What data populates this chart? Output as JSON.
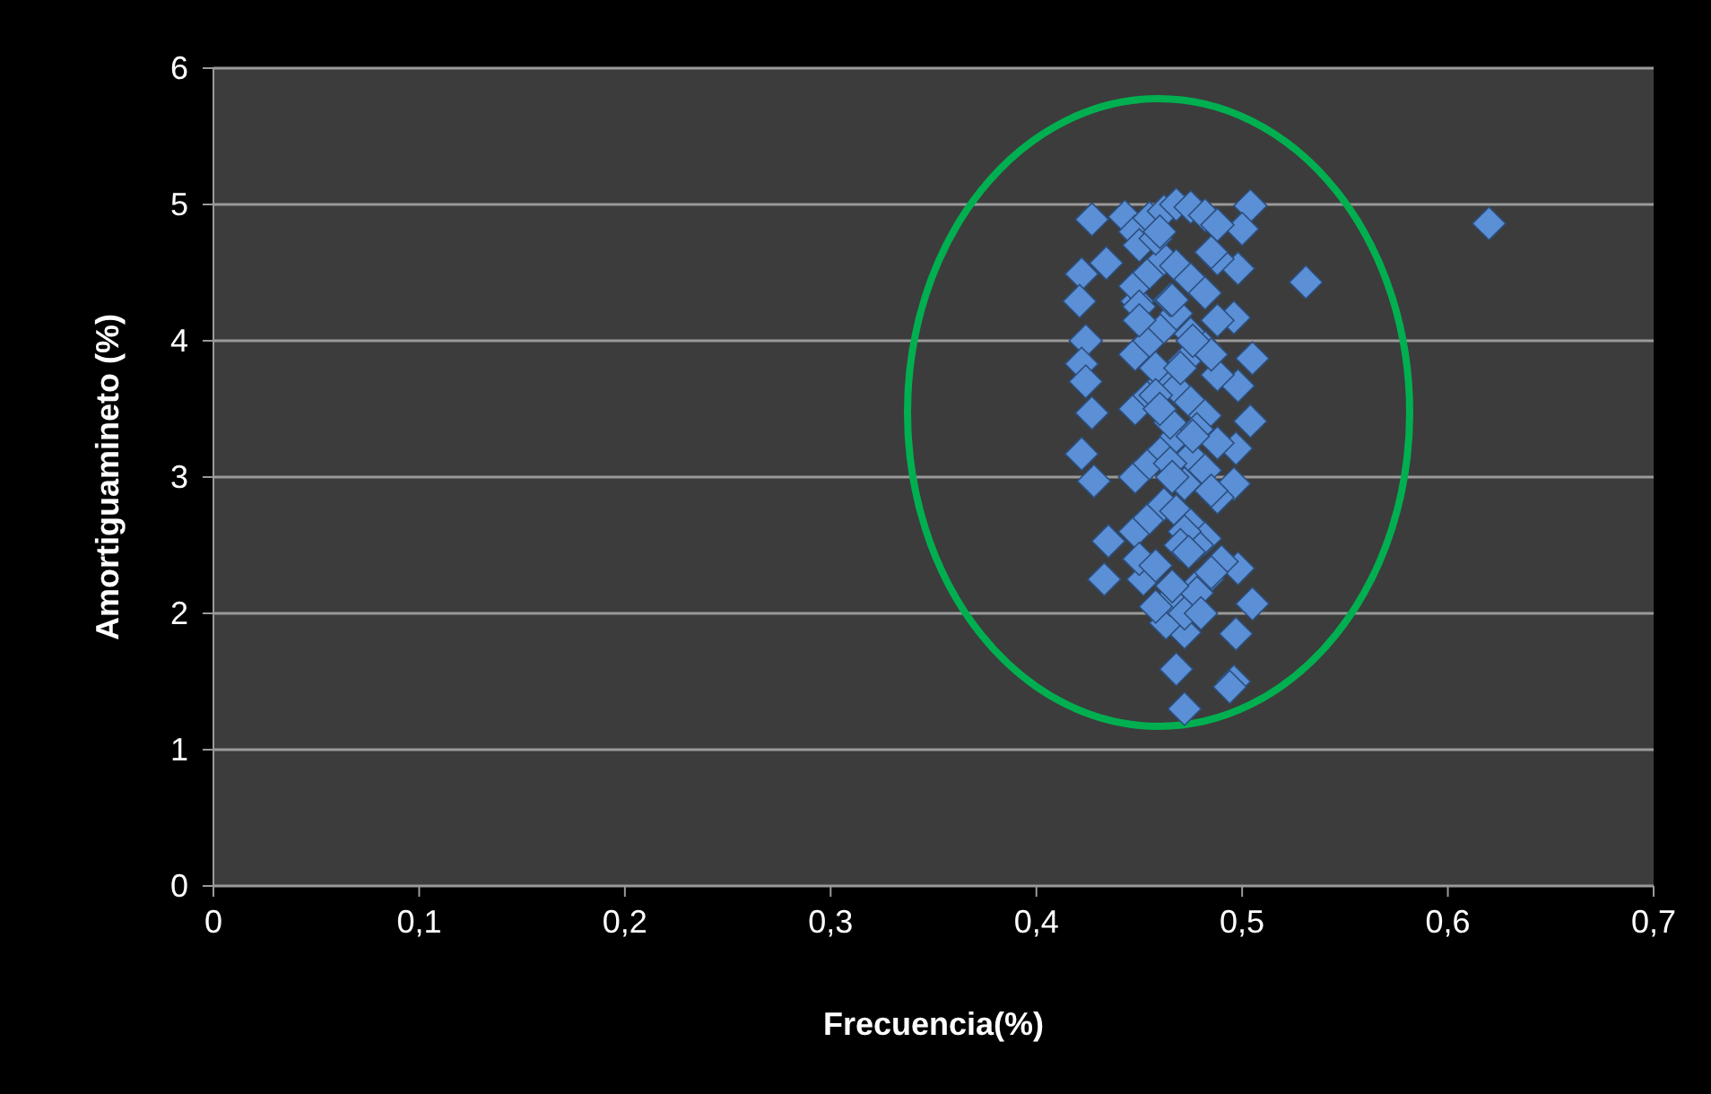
{
  "chart_data": {
    "type": "scatter",
    "xlabel": "Frecuencia(%)",
    "ylabel": "Amortiguamineto (%)",
    "marker": "diamond",
    "grid": "y",
    "xlim": [
      0,
      0.7
    ],
    "ylim": [
      0,
      6
    ],
    "xticks": [
      0,
      {
        "value": 0.1,
        "label": "0,1"
      },
      {
        "value": 0.2,
        "label": "0,2"
      },
      {
        "value": 0.3,
        "label": "0,3"
      },
      {
        "value": 0.4,
        "label": "0,4"
      },
      {
        "value": 0.5,
        "label": "0,5"
      },
      {
        "value": 0.6,
        "label": "0,6"
      },
      {
        "value": 0.7,
        "label": "0,7"
      }
    ],
    "yticks": [
      0,
      1,
      2,
      3,
      4,
      5,
      6
    ],
    "series": [
      {
        "color": "#5b8fd6",
        "x": [
          0.62,
          0.531,
          0.427,
          0.443,
          0.422,
          0.434,
          0.421,
          0.424,
          0.422,
          0.424,
          0.427,
          0.422,
          0.428,
          0.435,
          0.433,
          0.449,
          0.504,
          0.5,
          0.498,
          0.496,
          0.505,
          0.498,
          0.504,
          0.497,
          0.496,
          0.498,
          0.505,
          0.497,
          0.496,
          0.494,
          0.472,
          0.468,
          0.472,
          0.463,
          0.452,
          0.483,
          0.49,
          0.448,
          0.455,
          0.462,
          0.468,
          0.475,
          0.482,
          0.488,
          0.448,
          0.455,
          0.462,
          0.468,
          0.475,
          0.482,
          0.488,
          0.448,
          0.455,
          0.462,
          0.468,
          0.475,
          0.482,
          0.488,
          0.448,
          0.455,
          0.462,
          0.468,
          0.475,
          0.482,
          0.488,
          0.448,
          0.455,
          0.462,
          0.468,
          0.475,
          0.482,
          0.488,
          0.448,
          0.455,
          0.462,
          0.468,
          0.475,
          0.482,
          0.488,
          0.45,
          0.458,
          0.465,
          0.472,
          0.478,
          0.485,
          0.45,
          0.458,
          0.465,
          0.472,
          0.478,
          0.485,
          0.45,
          0.458,
          0.465,
          0.472,
          0.478,
          0.485,
          0.45,
          0.458,
          0.465,
          0.472,
          0.478,
          0.485,
          0.46,
          0.466,
          0.47,
          0.476,
          0.46,
          0.466,
          0.47,
          0.476,
          0.458,
          0.466,
          0.474,
          0.48
        ],
        "values": [
          4.86,
          4.43,
          4.89,
          4.91,
          4.49,
          4.57,
          4.29,
          4.0,
          3.83,
          3.7,
          3.47,
          3.17,
          2.97,
          2.53,
          2.25,
          4.29,
          4.99,
          4.82,
          4.53,
          4.17,
          3.87,
          3.67,
          3.41,
          3.21,
          2.95,
          2.33,
          2.07,
          1.85,
          1.5,
          1.46,
          1.3,
          1.59,
          1.86,
          1.93,
          2.25,
          2.25,
          2.38,
          4.8,
          4.9,
          4.95,
          5.0,
          4.98,
          4.92,
          4.85,
          4.4,
          4.5,
          4.6,
          4.55,
          4.45,
          4.35,
          4.6,
          3.9,
          4.0,
          4.1,
          4.2,
          4.05,
          3.95,
          4.15,
          3.5,
          3.6,
          3.7,
          3.65,
          3.55,
          3.45,
          3.75,
          3.0,
          3.1,
          3.2,
          3.3,
          3.15,
          3.05,
          3.25,
          2.6,
          2.7,
          2.8,
          2.75,
          2.65,
          2.55,
          2.85,
          4.7,
          4.75,
          4.3,
          3.85,
          3.35,
          2.9,
          4.25,
          3.8,
          3.4,
          2.95,
          2.5,
          4.65,
          4.15,
          3.6,
          3.1,
          2.6,
          2.2,
          3.9,
          2.4,
          2.35,
          2.1,
          2.0,
          2.15,
          2.3,
          4.8,
          4.3,
          3.8,
          3.3,
          3.5,
          3.0,
          2.5,
          4.0,
          2.05,
          2.2,
          2.45,
          2.0
        ]
      }
    ]
  }
}
